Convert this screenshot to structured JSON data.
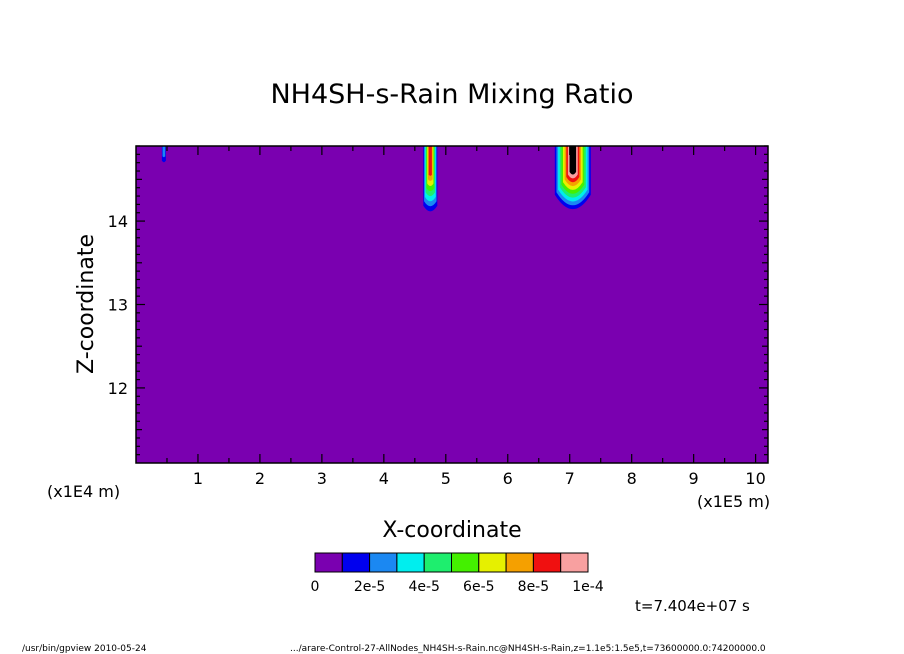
{
  "chart_data": {
    "type": "heatmap",
    "title": "NH4SH-s-Rain Mixing Ratio",
    "xlabel": "X-coordinate",
    "ylabel": "Z-coordinate",
    "x_unit_left": "(x1E4 m)",
    "x_unit_right": "(x1E5 m)",
    "xlim": [
      0,
      10.2
    ],
    "ylim": [
      11.1,
      14.9
    ],
    "x_ticks": [
      "1",
      "2",
      "3",
      "4",
      "5",
      "6",
      "7",
      "8",
      "9",
      "10"
    ],
    "y_ticks": [
      "12",
      "13",
      "14"
    ],
    "time_label": "t=7.404e+07 s",
    "colorbar": {
      "colors": [
        "#7a00b0",
        "#0000ee",
        "#1b88f2",
        "#00eeee",
        "#1eee6e",
        "#44f000",
        "#e6f000",
        "#f5a000",
        "#f01010",
        "#f8a0a0"
      ],
      "labels": [
        "0",
        "2e-5",
        "4e-5",
        "6e-5",
        "8e-5",
        "1e-4"
      ]
    },
    "background_value": 0,
    "features": [
      {
        "x_center": 0.45,
        "z_top": 14.9,
        "z_bottom": 14.7,
        "peak": 2e-05
      },
      {
        "x_center": 4.75,
        "z_top": 14.9,
        "z_bottom": 14.1,
        "peak": 8e-05
      },
      {
        "x_center": 7.05,
        "z_top": 14.9,
        "z_bottom": 14.1,
        "peak": 0.0001
      }
    ]
  },
  "footer": {
    "left": "/usr/bin/gpview   2010-05-24",
    "right": ".../arare-Control-27-AllNodes_NH4SH-s-Rain.nc@NH4SH-s-Rain,z=1.1e5:1.5e5,t=73600000.0:74200000.0"
  }
}
